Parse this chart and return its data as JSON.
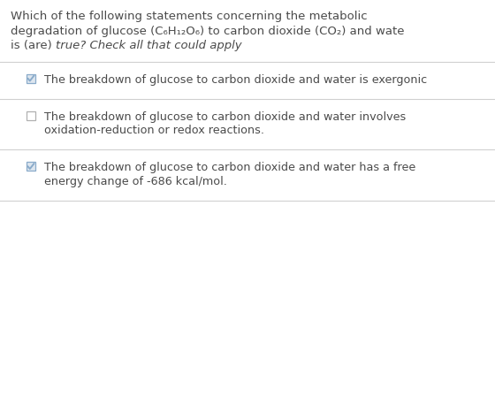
{
  "bg_color": "#ffffff",
  "text_color": "#4a4a4a",
  "separator_color": "#d0d0d0",
  "checkbox_border_color": "#b0b0b0",
  "checkbox_checked_color": "#8aabca",
  "checkbox_checked_fill": "#dde6ef",
  "question_lines": [
    "Which of the following statements concerning the metabolic",
    "degradation of glucose (C₆H₁₂O₆) to carbon dioxide (CO₂) and wate",
    "is (are) "
  ],
  "question_italic": "true? Check all that could apply",
  "options": [
    {
      "checked": true,
      "lines": [
        "The breakdown of glucose to carbon dioxide and water is exergonic"
      ]
    },
    {
      "checked": false,
      "lines": [
        "The breakdown of glucose to carbon dioxide and water involves",
        "oxidation-reduction or redox reactions."
      ]
    },
    {
      "checked": true,
      "lines": [
        "The breakdown of glucose to carbon dioxide and water has a free",
        "energy change of -686 kcal/mol."
      ]
    }
  ],
  "q_fontsize": 9.5,
  "opt_fontsize": 9.2,
  "figwidth": 5.6,
  "figheight": 4.74,
  "dpi": 100
}
